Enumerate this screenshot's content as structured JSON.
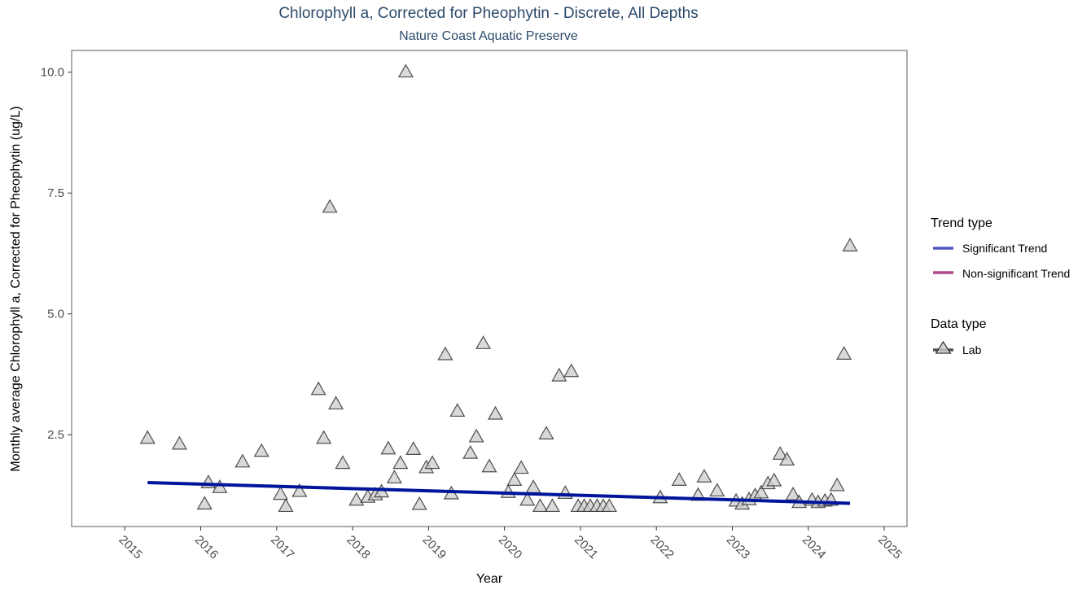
{
  "chart_data": {
    "type": "scatter",
    "title": "Chlorophyll a, Corrected for Pheophytin - Discrete, All Depths",
    "subtitle": "Nature Coast Aquatic Preserve",
    "xlabel": "Year",
    "ylabel": "Monthly average Chlorophyll a, Corrected for Pheophytin (ug/L)",
    "xlim": [
      2014.3,
      2025.3
    ],
    "ylim": [
      0.6,
      10.45
    ],
    "x_ticks": [
      "2015",
      "2016",
      "2017",
      "2018",
      "2019",
      "2020",
      "2021",
      "2022",
      "2023",
      "2024",
      "2025"
    ],
    "y_ticks": [
      "2.5",
      "5.0",
      "7.5",
      "10.0"
    ],
    "grid": false,
    "series": [
      {
        "name": "Lab",
        "marker": "triangle",
        "points": [
          [
            2015.3,
            2.44
          ],
          [
            2015.72,
            2.32
          ],
          [
            2016.05,
            1.08
          ],
          [
            2016.1,
            1.52
          ],
          [
            2016.25,
            1.42
          ],
          [
            2016.55,
            1.95
          ],
          [
            2016.8,
            2.17
          ],
          [
            2017.05,
            1.28
          ],
          [
            2017.12,
            1.03
          ],
          [
            2017.3,
            1.34
          ],
          [
            2017.55,
            3.45
          ],
          [
            2017.62,
            2.44
          ],
          [
            2017.7,
            7.22
          ],
          [
            2017.78,
            3.15
          ],
          [
            2017.87,
            1.92
          ],
          [
            2018.05,
            1.16
          ],
          [
            2018.2,
            1.22
          ],
          [
            2018.3,
            1.27
          ],
          [
            2018.38,
            1.33
          ],
          [
            2018.47,
            2.22
          ],
          [
            2018.55,
            1.62
          ],
          [
            2018.63,
            1.92
          ],
          [
            2018.7,
            10.02
          ],
          [
            2018.8,
            2.21
          ],
          [
            2018.88,
            1.07
          ],
          [
            2018.97,
            1.83
          ],
          [
            2019.05,
            1.92
          ],
          [
            2019.22,
            4.17
          ],
          [
            2019.3,
            1.29
          ],
          [
            2019.38,
            3.0
          ],
          [
            2019.55,
            2.13
          ],
          [
            2019.63,
            2.47
          ],
          [
            2019.72,
            4.4
          ],
          [
            2019.8,
            1.85
          ],
          [
            2019.88,
            2.94
          ],
          [
            2020.05,
            1.32
          ],
          [
            2020.13,
            1.57
          ],
          [
            2020.22,
            1.82
          ],
          [
            2020.3,
            1.16
          ],
          [
            2020.38,
            1.42
          ],
          [
            2020.47,
            1.03
          ],
          [
            2020.55,
            2.53
          ],
          [
            2020.63,
            1.03
          ],
          [
            2020.72,
            3.73
          ],
          [
            2020.8,
            1.3
          ],
          [
            2020.88,
            3.82
          ],
          [
            2020.97,
            1.03
          ],
          [
            2021.05,
            1.03
          ],
          [
            2021.13,
            1.03
          ],
          [
            2021.22,
            1.03
          ],
          [
            2021.3,
            1.03
          ],
          [
            2021.38,
            1.03
          ],
          [
            2022.05,
            1.21
          ],
          [
            2022.3,
            1.57
          ],
          [
            2022.55,
            1.26
          ],
          [
            2022.63,
            1.64
          ],
          [
            2022.8,
            1.35
          ],
          [
            2023.05,
            1.14
          ],
          [
            2023.13,
            1.08
          ],
          [
            2023.22,
            1.17
          ],
          [
            2023.3,
            1.25
          ],
          [
            2023.38,
            1.31
          ],
          [
            2023.47,
            1.5
          ],
          [
            2023.55,
            1.56
          ],
          [
            2023.63,
            2.11
          ],
          [
            2023.72,
            1.99
          ],
          [
            2023.8,
            1.27
          ],
          [
            2023.88,
            1.11
          ],
          [
            2024.05,
            1.16
          ],
          [
            2024.13,
            1.11
          ],
          [
            2024.22,
            1.14
          ],
          [
            2024.3,
            1.16
          ],
          [
            2024.38,
            1.46
          ],
          [
            2024.47,
            4.18
          ],
          [
            2024.55,
            6.42
          ]
        ]
      }
    ],
    "trend": {
      "name": "Significant Trend",
      "x": [
        2015.3,
        2024.55
      ],
      "y": [
        1.51,
        1.08
      ]
    },
    "legend": {
      "placement": "right",
      "trend_title": "Trend type",
      "trend_items": [
        {
          "label": "Significant Trend",
          "color": "#4e56c0"
        },
        {
          "label": "Non-significant Trend",
          "color": "#b2468f"
        }
      ],
      "data_title": "Data type",
      "data_items": [
        {
          "label": "Lab"
        }
      ]
    },
    "colors": {
      "trend_line": "#00159b",
      "marker_fill": "#cccccc",
      "marker_stroke": "#333333",
      "title": "#2c4a6b"
    }
  }
}
